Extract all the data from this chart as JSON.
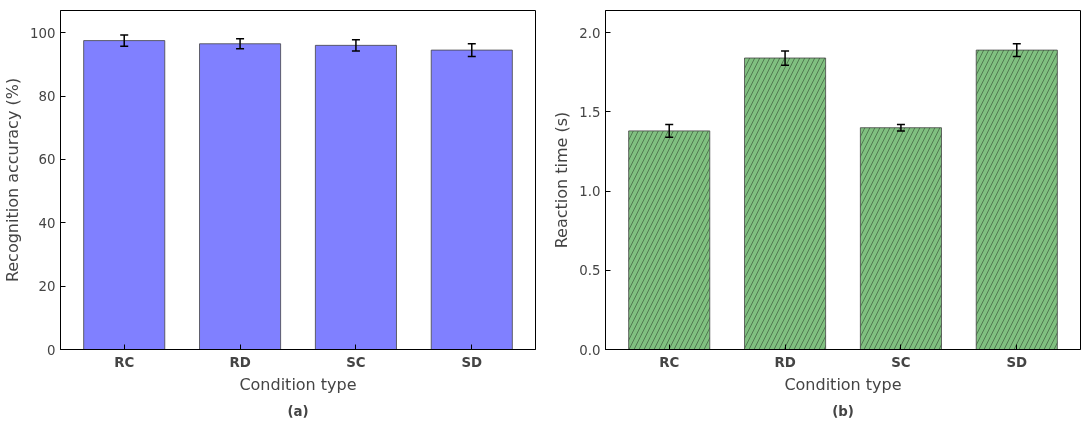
{
  "chart_data": [
    {
      "type": "bar",
      "categories": [
        "RC",
        "RD",
        "SC",
        "SD"
      ],
      "xlabel": "Condition type",
      "ylabel": "Recognition accuracy (%)",
      "annotations": [
        "(a)"
      ],
      "ylim": [
        0,
        107
      ],
      "yticks": [
        0,
        20,
        40,
        60,
        80,
        100
      ],
      "grid": false,
      "series": [
        {
          "color": "#8080ff",
          "values": [
            97.5,
            96.5,
            96,
            94.5
          ],
          "errors": [
            1.8,
            1.6,
            1.8,
            2.0
          ]
        }
      ]
    },
    {
      "type": "bar",
      "categories": [
        "RC",
        "RD",
        "SC",
        "SD"
      ],
      "xlabel": "Condition type",
      "ylabel": "Reaction time (s)",
      "annotations": [
        "(b)"
      ],
      "ylim": [
        0,
        2.14
      ],
      "yticks": [
        {
          "value": 0,
          "label": "0.0"
        },
        0.5,
        {
          "value": 1,
          "label": "1.0"
        },
        1.5,
        {
          "value": 2,
          "label": "2.0"
        }
      ],
      "grid": false,
      "series": [
        {
          "color": "#80c080",
          "values": [
            1.38,
            1.84,
            1.4,
            1.89
          ],
          "errors": [
            0.04,
            0.045,
            0.02,
            0.04
          ]
        }
      ]
    }
  ]
}
